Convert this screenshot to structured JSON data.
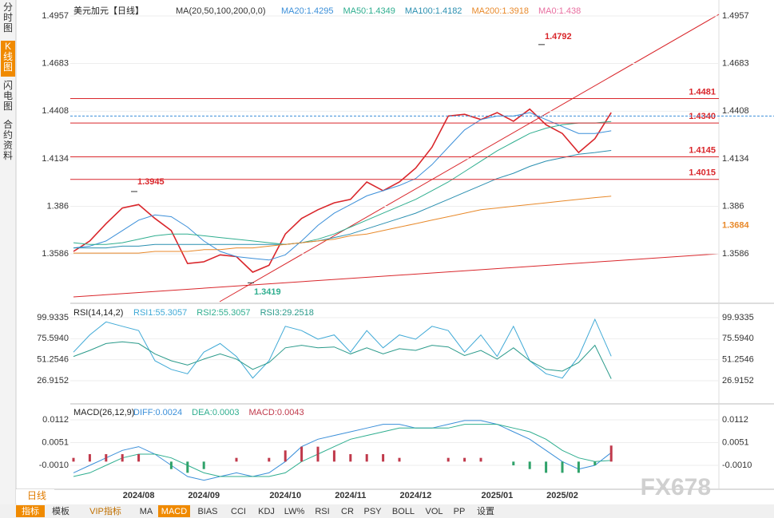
{
  "sidebar": [
    "分时图",
    "K线图",
    "闪电图",
    "合约资料"
  ],
  "toolbar": [
    "指标",
    "模板",
    "VIP指标",
    "MA",
    "MACD",
    "BIAS",
    "CCI",
    "KDJ",
    "LW%",
    "RSI",
    "CR",
    "PSY",
    "BOLL",
    "VOL",
    "PP",
    "设置"
  ],
  "period": "日线",
  "watermark": "FX678",
  "chart_data": [
    {
      "type": "line",
      "title": "美元加元【日线】",
      "indicator": "MA(20,50,100,200,0,0)",
      "extra_label": "MA0:1.438",
      "categories": [
        null,
        null,
        null,
        null,
        "2024/08",
        null,
        null,
        null,
        "2024/09",
        null,
        null,
        null,
        null,
        "2024/10",
        null,
        null,
        null,
        "2024/11",
        null,
        null,
        null,
        "2024/12",
        null,
        null,
        null,
        null,
        "2025/01",
        null,
        null,
        null,
        "2025/02",
        null,
        null,
        null
      ],
      "ylim": [
        1.331,
        1.5026
      ],
      "yticks": [
        1.4957,
        1.4683,
        1.4408,
        1.4134,
        1.386,
        1.3586
      ],
      "series": [
        {
          "name": "美元加元",
          "color": "#d9262b",
          "values": [
            1.36,
            1.366,
            1.376,
            1.385,
            1.387,
            1.379,
            1.372,
            1.353,
            1.354,
            1.358,
            1.357,
            1.348,
            1.352,
            1.37,
            1.379,
            1.384,
            1.388,
            1.39,
            1.4,
            1.395,
            1.4,
            1.408,
            1.42,
            1.438,
            1.439,
            1.436,
            1.44,
            1.435,
            1.442,
            1.433,
            1.428,
            1.417,
            1.425,
            1.44
          ]
        },
        {
          "name": "MA20:1.4295",
          "color": "#3b8fd9",
          "values": [
            1.362,
            1.363,
            1.366,
            1.372,
            1.378,
            1.381,
            1.38,
            1.374,
            1.366,
            1.36,
            1.357,
            1.356,
            1.355,
            1.358,
            1.366,
            1.375,
            1.382,
            1.387,
            1.392,
            1.395,
            1.398,
            1.402,
            1.41,
            1.42,
            1.43,
            1.436,
            1.438,
            1.438,
            1.44,
            1.436,
            1.432,
            1.428,
            1.428,
            1.4295
          ]
        },
        {
          "name": "MA50:1.4349",
          "color": "#2fae8f",
          "values": [
            1.365,
            1.364,
            1.364,
            1.365,
            1.367,
            1.369,
            1.37,
            1.37,
            1.369,
            1.368,
            1.367,
            1.366,
            1.365,
            1.364,
            1.365,
            1.367,
            1.37,
            1.374,
            1.378,
            1.382,
            1.386,
            1.39,
            1.395,
            1.4,
            1.406,
            1.412,
            1.418,
            1.423,
            1.428,
            1.431,
            1.433,
            1.434,
            1.434,
            1.4349
          ]
        },
        {
          "name": "MA100:1.4182",
          "color": "#2a8fb0",
          "values": [
            1.362,
            1.362,
            1.362,
            1.363,
            1.363,
            1.364,
            1.364,
            1.364,
            1.364,
            1.364,
            1.364,
            1.364,
            1.364,
            1.364,
            1.365,
            1.366,
            1.368,
            1.37,
            1.373,
            1.376,
            1.379,
            1.382,
            1.386,
            1.39,
            1.394,
            1.398,
            1.402,
            1.405,
            1.409,
            1.412,
            1.414,
            1.416,
            1.417,
            1.4182
          ]
        },
        {
          "name": "MA200:1.3918",
          "color": "#e8892a",
          "values": [
            1.359,
            1.359,
            1.359,
            1.359,
            1.359,
            1.36,
            1.36,
            1.36,
            1.361,
            1.361,
            1.362,
            1.362,
            1.363,
            1.364,
            1.365,
            1.366,
            1.367,
            1.369,
            1.37,
            1.372,
            1.374,
            1.376,
            1.378,
            1.38,
            1.382,
            1.384,
            1.385,
            1.386,
            1.387,
            1.388,
            1.389,
            1.39,
            1.391,
            1.3918
          ]
        }
      ],
      "levels": [
        1.4481,
        {
          "value": 1.434,
          "label": "1.4340"
        },
        1.4145,
        1.4015
      ],
      "price_line": 1.438,
      "annotations": [
        1.4792,
        1.3945,
        1.3419,
        1.3684
      ]
    },
    {
      "type": "line",
      "title": "RSI(14,14,2)",
      "ylim": [
        1.04,
        113.8
      ],
      "yticks": [
        99.9335,
        75.594,
        51.2546,
        26.9152
      ],
      "tick_labels": [
        "99.9335",
        "75.5940",
        "51.2546",
        "26.9152"
      ],
      "series": [
        {
          "name": "RSI1:55.3057",
          "color": "#3fa9d6",
          "values": [
            60,
            80,
            95,
            90,
            85,
            50,
            40,
            35,
            60,
            70,
            55,
            30,
            50,
            90,
            85,
            75,
            80,
            60,
            85,
            65,
            80,
            75,
            90,
            85,
            60,
            80,
            55,
            90,
            50,
            35,
            30,
            55,
            98,
            55.3057
          ]
        },
        {
          "name": "RSI2:55.3057",
          "color": "#2fae8f",
          "values": null
        },
        {
          "name": "RSI3:29.2518",
          "color": "#2a9a8a",
          "values": [
            55,
            62,
            70,
            72,
            70,
            58,
            50,
            45,
            52,
            58,
            52,
            40,
            48,
            65,
            68,
            65,
            66,
            58,
            65,
            58,
            64,
            62,
            68,
            66,
            56,
            62,
            52,
            65,
            50,
            40,
            38,
            48,
            68,
            29.2518
          ]
        }
      ]
    },
    {
      "type": "line",
      "title": "MACD(26,12,9)",
      "ylim": [
        -0.0072,
        0.01505
      ],
      "yticks": [
        0.0112,
        0.0051,
        {
          "value": -0.001,
          "label": "-0.0010"
        }
      ],
      "series": [
        {
          "name": "DIFF:0.0024",
          "color": "#3b8fd9",
          "values": [
            -0.003,
            -0.001,
            0.001,
            0.003,
            0.004,
            0.002,
            -0.001,
            -0.004,
            -0.005,
            -0.004,
            -0.003,
            -0.004,
            -0.003,
            0,
            0.004,
            0.006,
            0.007,
            0.008,
            0.009,
            0.01,
            0.01,
            0.009,
            0.009,
            0.01,
            0.011,
            0.011,
            0.01,
            0.008,
            0.006,
            0.003,
            0,
            -0.002,
            -0.001,
            0.0024
          ]
        },
        {
          "name": "DEA:0.0003",
          "color": "#2fae8f",
          "values": [
            -0.004,
            -0.003,
            -0.001,
            0.001,
            0.002,
            0.002,
            0.001,
            -0.001,
            -0.003,
            -0.004,
            -0.004,
            -0.004,
            -0.004,
            -0.003,
            0,
            0.002,
            0.004,
            0.006,
            0.007,
            0.008,
            0.009,
            0.009,
            0.009,
            0.009,
            0.01,
            0.01,
            0.01,
            0.009,
            0.008,
            0.006,
            0.003,
            0.001,
            0,
            0.0003
          ]
        },
        {
          "name": "MACD:0.0043",
          "color": "#c0394b",
          "bars": true,
          "values": [
            0.001,
            0.002,
            0.002,
            0.002,
            0.002,
            0,
            -0.002,
            -0.003,
            -0.002,
            0,
            0.001,
            0,
            0.001,
            0.003,
            0.004,
            0.004,
            0.003,
            0.002,
            0.002,
            0.002,
            0.001,
            0,
            0,
            0.001,
            0.001,
            0.001,
            0,
            -0.001,
            -0.002,
            -0.003,
            -0.003,
            -0.003,
            -0.001,
            0.0043
          ]
        }
      ]
    }
  ]
}
